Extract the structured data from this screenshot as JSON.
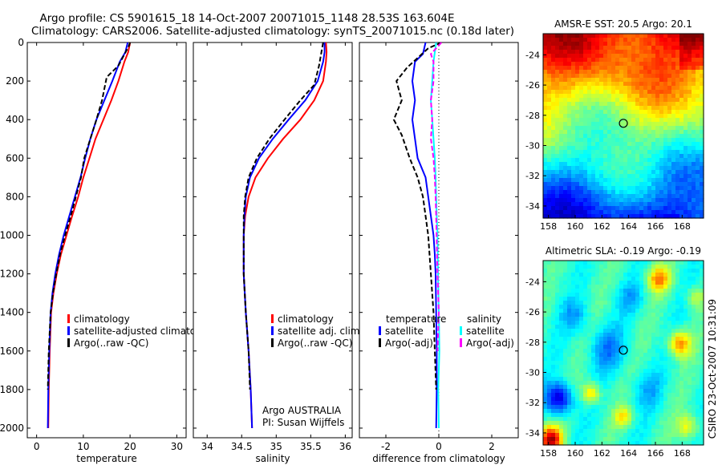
{
  "title": {
    "line1": "Argo profile: CS 5901615_18 14-Oct-2007 20071015_1148 28.53S 163.604E",
    "line2": "Climatology: CARS2006. Satellite-adjusted climatology: synTS_20071015.nc (0.18d later)"
  },
  "footer_stamp": "CSIRO 23-Oct-2007 10:31:09",
  "colors": {
    "climatology": "#ff0000",
    "satellite": "#0000ff",
    "argo": "#000000",
    "sal_satellite": "#00ffff",
    "sal_argo": "#ff00ff"
  },
  "chart_data": [
    {
      "type": "line",
      "xlabel": "temperature",
      "ylabel": "",
      "xlim": [
        -2,
        32
      ],
      "ylim": [
        2050,
        0
      ],
      "xticks": [
        0,
        10,
        20,
        30
      ],
      "yticks": [
        0,
        200,
        400,
        600,
        800,
        1000,
        1200,
        1400,
        1600,
        1800,
        2000
      ],
      "legend": [
        "climatology",
        "satellite-adjusted climatology",
        "Argo(..raw -QC)"
      ],
      "series": [
        {
          "name": "climatology",
          "style": "solid",
          "color": "#ff0000",
          "x": [
            20.0,
            19.6,
            18.8,
            17.5,
            16.0,
            14.3,
            12.6,
            11.3,
            10.0,
            8.9,
            7.6,
            6.4,
            5.2,
            4.3,
            3.6,
            3.1,
            2.8,
            2.6,
            2.5
          ],
          "y": [
            0,
            50,
            100,
            200,
            300,
            400,
            500,
            600,
            700,
            800,
            900,
            1000,
            1100,
            1200,
            1300,
            1400,
            1600,
            1800,
            2000
          ]
        },
        {
          "name": "satellite-adjusted climatology",
          "style": "solid",
          "color": "#0000ff",
          "x": [
            19.5,
            19.0,
            17.8,
            16.2,
            14.5,
            12.8,
            11.5,
            10.4,
            9.4,
            8.2,
            7.0,
            5.8,
            4.8,
            4.0,
            3.4,
            3.0,
            2.7,
            2.5,
            2.4
          ],
          "y": [
            0,
            50,
            100,
            200,
            300,
            400,
            500,
            600,
            700,
            800,
            900,
            1000,
            1100,
            1200,
            1300,
            1400,
            1600,
            1800,
            2000
          ]
        },
        {
          "name": "Argo(..raw -QC)",
          "style": "dashed",
          "color": "#000000",
          "x": [
            20.0,
            19.7,
            17.5,
            15.0,
            14.0,
            12.8,
            11.5,
            10.2,
            9.5,
            8.4,
            7.3,
            6.1,
            5.0,
            4.2,
            3.5,
            3.0,
            2.6,
            2.4
          ],
          "y": [
            0,
            20,
            120,
            180,
            300,
            400,
            500,
            600,
            700,
            800,
            900,
            1000,
            1100,
            1200,
            1300,
            1400,
            1600,
            1800
          ]
        }
      ]
    },
    {
      "type": "line",
      "xlabel": "salinity",
      "ylabel": "",
      "xlim": [
        33.8,
        36.1
      ],
      "ylim": [
        2050,
        0
      ],
      "xticks": [
        34,
        34.5,
        35,
        35.5,
        36
      ],
      "legend": [
        "climatology",
        "satellite adj. clim.",
        "Argo(..raw -QC)"
      ],
      "annotation": [
        "Argo AUSTRALIA",
        "PI: Susan Wijffels"
      ],
      "series": [
        {
          "name": "climatology",
          "style": "solid",
          "color": "#ff0000",
          "x": [
            35.72,
            35.73,
            35.72,
            35.68,
            35.55,
            35.35,
            35.1,
            34.88,
            34.7,
            34.6,
            34.55,
            34.53,
            34.53,
            34.56,
            34.6,
            34.63,
            34.65
          ],
          "y": [
            0,
            50,
            100,
            200,
            300,
            400,
            500,
            600,
            700,
            800,
            900,
            1000,
            1200,
            1400,
            1600,
            1800,
            2000
          ]
        },
        {
          "name": "satellite adj. clim.",
          "style": "solid",
          "color": "#0000ff",
          "x": [
            35.7,
            35.7,
            35.68,
            35.6,
            35.42,
            35.18,
            34.95,
            34.75,
            34.62,
            34.56,
            34.54,
            34.53,
            34.53,
            34.56,
            34.6,
            34.63,
            34.65
          ],
          "y": [
            0,
            50,
            100,
            200,
            300,
            400,
            500,
            600,
            700,
            800,
            900,
            1000,
            1200,
            1400,
            1600,
            1800,
            2000
          ]
        },
        {
          "name": "Argo(..raw -QC)",
          "style": "dashed",
          "color": "#000000",
          "x": [
            35.68,
            35.66,
            35.62,
            35.55,
            35.35,
            35.12,
            34.9,
            34.72,
            34.6,
            34.55,
            34.53,
            34.53,
            34.56,
            34.6,
            34.62
          ],
          "y": [
            0,
            40,
            120,
            220,
            300,
            400,
            500,
            600,
            700,
            800,
            900,
            1200,
            1400,
            1600,
            1800
          ]
        }
      ]
    },
    {
      "type": "line",
      "xlabel": "difference from climatology",
      "ylabel": "",
      "xlim": [
        -3,
        3
      ],
      "ylim": [
        2050,
        0
      ],
      "xticks": [
        -2,
        0,
        2
      ],
      "legend_groups": [
        {
          "heading": "temperature",
          "entries": [
            "satellite",
            "Argo(-adj)"
          ]
        },
        {
          "heading": "salinity",
          "entries": [
            "satellite",
            "Argo(-adj)"
          ]
        }
      ],
      "series": [
        {
          "name": "temperature satellite",
          "style": "solid",
          "color": "#0000ff",
          "x": [
            -0.5,
            -0.6,
            -0.9,
            -1.0,
            -0.9,
            -1.0,
            -0.9,
            -0.8,
            -0.5,
            -0.4,
            -0.3,
            -0.2,
            -0.15,
            -0.12,
            -0.1,
            -0.08,
            -0.08,
            -0.1
          ],
          "y": [
            0,
            60,
            100,
            200,
            300,
            400,
            500,
            600,
            700,
            800,
            900,
            1000,
            1100,
            1200,
            1400,
            1600,
            1800,
            2000
          ]
        },
        {
          "name": "temperature Argo(-adj)",
          "style": "dashed",
          "color": "#000000",
          "x": [
            0.1,
            -0.4,
            -1.2,
            -1.6,
            -1.4,
            -1.7,
            -1.4,
            -1.1,
            -0.8,
            -0.6,
            -0.5,
            -0.4,
            -0.3,
            -0.2,
            -0.15,
            -0.1
          ],
          "y": [
            0,
            30,
            130,
            200,
            300,
            400,
            480,
            600,
            700,
            800,
            900,
            1000,
            1200,
            1400,
            1600,
            1800
          ]
        },
        {
          "name": "salinity satellite",
          "style": "solid",
          "color": "#00ffff",
          "x": [
            -0.1,
            -0.2,
            -0.25,
            -0.3,
            -0.25,
            -0.2,
            -0.15,
            -0.12,
            -0.1,
            -0.08,
            -0.05,
            -0.03,
            0.0,
            0.02,
            0.0,
            -0.02,
            0.0
          ],
          "y": [
            0,
            100,
            200,
            300,
            400,
            500,
            600,
            700,
            800,
            900,
            1000,
            1200,
            1400,
            1600,
            1700,
            1800,
            2000
          ]
        },
        {
          "name": "salinity Argo(-adj)",
          "style": "dashed",
          "color": "#ff00ff",
          "x": [
            0.1,
            -0.3,
            -0.2,
            -0.2,
            -0.3,
            -0.25,
            -0.3,
            -0.2,
            -0.15,
            -0.12,
            -0.1,
            -0.05,
            0.0,
            -0.05
          ],
          "y": [
            0,
            60,
            100,
            200,
            300,
            400,
            500,
            600,
            700,
            800,
            900,
            1200,
            1400,
            1600
          ]
        }
      ]
    },
    {
      "type": "heatmap",
      "title": "AMSR-E SST: 20.5 Argo: 20.1",
      "xlim": [
        157.6,
        169.6
      ],
      "ylim": [
        -34.8,
        -22.6
      ],
      "xticks": [
        158,
        160,
        162,
        164,
        166,
        168
      ],
      "yticks": [
        -24,
        -26,
        -28,
        -30,
        -32,
        -34
      ],
      "colormap": "jet",
      "marker": {
        "lon": 163.604,
        "lat": -28.53
      }
    },
    {
      "type": "heatmap",
      "title": "Altimetric SLA: -0.19 Argo: -0.19",
      "xlim": [
        157.6,
        169.6
      ],
      "ylim": [
        -34.8,
        -22.6
      ],
      "xticks": [
        158,
        160,
        162,
        164,
        166,
        168
      ],
      "yticks": [
        -24,
        -26,
        -28,
        -30,
        -32,
        -34
      ],
      "colormap": "jet",
      "marker": {
        "lon": 163.604,
        "lat": -28.53
      }
    }
  ]
}
